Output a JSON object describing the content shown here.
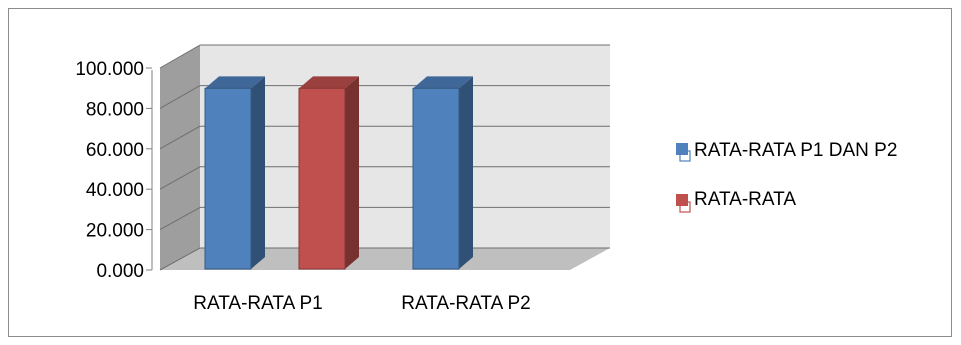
{
  "chart_data": {
    "type": "bar",
    "title": "",
    "xlabel": "",
    "ylabel": "",
    "categories": [
      "RATA-RATA P1",
      "RATA-RATA P2"
    ],
    "series": [
      {
        "name": "RATA-RATA P1 DAN P2",
        "values": [
          89,
          89
        ],
        "color": "#4f81bd"
      },
      {
        "name": "RATA-RATA",
        "values": [
          89,
          null
        ],
        "color": "#c0504d"
      }
    ],
    "ylim": [
      0,
      100
    ],
    "yticks": [
      "0.000",
      "20.000",
      "40.000",
      "60.000",
      "80.000",
      "100.000"
    ],
    "grid": true,
    "three_d": true,
    "legend_position": "right",
    "colors": {
      "plot_wall": "#e6e6e6",
      "plot_floor": "#bfbfbf",
      "side_wall": "#9e9e9e",
      "gridline": "#6f6f6f"
    }
  }
}
